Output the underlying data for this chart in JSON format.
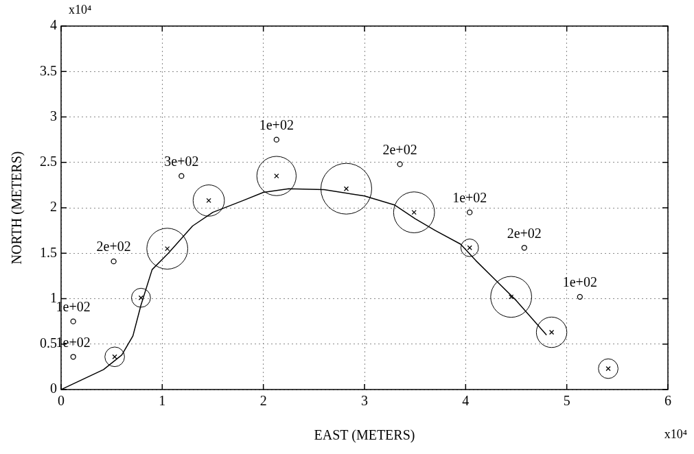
{
  "chart_data": {
    "type": "scatter",
    "xlabel": "EAST (METERS)",
    "ylabel": "NORTH (METERS)",
    "annotations": [
      "x10⁴",
      "x10⁴",
      {
        "text": "1e+02",
        "x": 0.12,
        "y": 0.75
      },
      {
        "text": "1e+02",
        "x": 0.12,
        "y": 0.36
      },
      {
        "text": "2e+02",
        "x": 0.52,
        "y": 1.41
      },
      {
        "text": "3e+02",
        "x": 1.19,
        "y": 2.35
      },
      {
        "text": "1e+02",
        "x": 2.13,
        "y": 2.75
      },
      {
        "text": "2e+02",
        "x": 3.35,
        "y": 2.48
      },
      {
        "text": "1e+02",
        "x": 4.04,
        "y": 1.95
      },
      {
        "text": "2e+02",
        "x": 4.58,
        "y": 1.56
      },
      {
        "text": "1e+02",
        "x": 5.13,
        "y": 1.02
      }
    ],
    "xlim": [
      0,
      6
    ],
    "xticks": [
      0,
      1,
      2,
      3,
      4,
      5,
      6
    ],
    "ylim": [
      0,
      4
    ],
    "yticks": [
      0,
      0.5,
      1,
      1.5,
      2,
      2.5,
      3,
      3.5,
      4
    ],
    "grid": true,
    "legend": false,
    "series": [
      {
        "type": "line",
        "color": "#000000",
        "marker": "none",
        "x": [
          0,
          0.42,
          0.6,
          0.71,
          0.79,
          0.9,
          1.06,
          1.3,
          1.5,
          1.8,
          2.0,
          2.25,
          2.6,
          3.0,
          3.3,
          3.5,
          3.7,
          3.95,
          4.1,
          4.3,
          4.5,
          4.8
        ],
        "values": [
          0,
          0.22,
          0.38,
          0.59,
          0.93,
          1.32,
          1.5,
          1.8,
          1.95,
          2.08,
          2.17,
          2.21,
          2.2,
          2.13,
          2.03,
          1.88,
          1.75,
          1.6,
          1.42,
          1.2,
          0.98,
          0.6
        ]
      },
      {
        "type": "bubble",
        "color": "#000000",
        "x": [
          0.53,
          0.79,
          1.05,
          1.46,
          2.13,
          2.82,
          3.49,
          4.04,
          4.45,
          4.85,
          5.41
        ],
        "values": [
          0.36,
          1.01,
          1.55,
          2.08,
          2.35,
          2.21,
          1.95,
          1.56,
          1.02,
          0.63,
          0.23
        ],
        "sizes": [
          0.15,
          0.14,
          0.65,
          0.38,
          0.6,
          1,
          0.65,
          0.12,
          0.65,
          0.36,
          0.15
        ]
      },
      {
        "color": "#000000",
        "marker": "circle",
        "x": [
          0.12,
          0.12,
          0.52,
          1.19,
          2.13,
          3.35,
          4.04,
          4.58,
          5.13
        ],
        "values": [
          0.75,
          0.36,
          1.41,
          2.35,
          2.75,
          2.48,
          1.95,
          1.56,
          1.02
        ]
      }
    ]
  }
}
